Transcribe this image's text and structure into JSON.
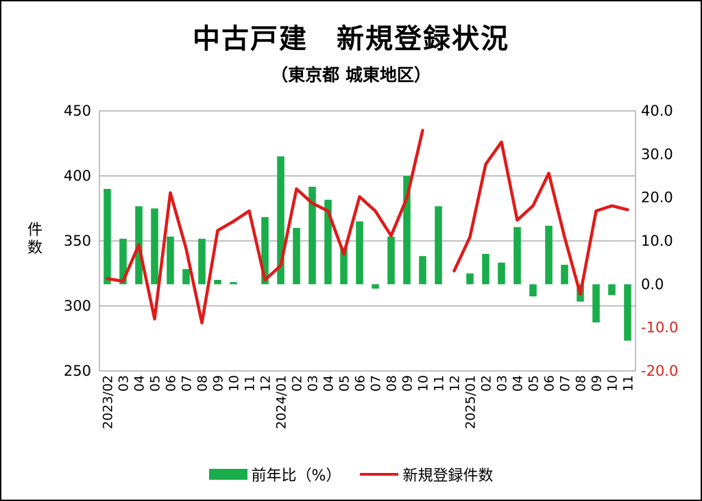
{
  "chart_data": {
    "type": "bar",
    "title": "中古戸建　新規登録状況",
    "subtitle": "（東京都 城東地区）",
    "ylabel_left": "件数",
    "y_left": {
      "range": [
        250,
        450
      ],
      "ticks": [
        "250",
        "300",
        "350",
        "400",
        "450"
      ]
    },
    "y_right": {
      "range": [
        -20,
        40
      ],
      "ticks": [
        "-20.0",
        "-10.0",
        "0.0",
        "10.0",
        "20.0",
        "30.0",
        "40.0"
      ]
    },
    "grid": true,
    "legend_position": "bottom",
    "categories": [
      "2023/02",
      "03",
      "04",
      "05",
      "06",
      "07",
      "08",
      "09",
      "10",
      "11",
      "12",
      "2024/01",
      "02",
      "03",
      "04",
      "05",
      "06",
      "07",
      "08",
      "09",
      "10",
      "11",
      "12",
      "2025/01",
      "02",
      "03",
      "04",
      "05",
      "06",
      "07",
      "08",
      "09",
      "10",
      "11"
    ],
    "series": [
      {
        "name": "前年比（%）",
        "type": "bar",
        "axis": "right",
        "color": "#1aad4b",
        "values": [
          22.0,
          10.5,
          18.0,
          17.5,
          11.0,
          3.5,
          10.5,
          1.0,
          0.5,
          null,
          15.5,
          29.5,
          13.0,
          22.5,
          19.5,
          8.5,
          14.5,
          -1.0,
          11.0,
          25.0,
          6.5,
          18.0,
          null,
          2.5,
          7.0,
          5.0,
          13.2,
          -2.8,
          13.5,
          4.5,
          -4.0,
          -8.8,
          -2.5,
          -13.0
        ]
      },
      {
        "name": "新規登録件数",
        "type": "line",
        "axis": "left",
        "color": "#e01a1a",
        "values": [
          321,
          319,
          347,
          290,
          387,
          344,
          287,
          358,
          365,
          373,
          320,
          331,
          390,
          379,
          373,
          340,
          384,
          373,
          354,
          383,
          435,
          null,
          327,
          353,
          409,
          426,
          366,
          377,
          402,
          353,
          309,
          373,
          377,
          374
        ]
      }
    ]
  }
}
